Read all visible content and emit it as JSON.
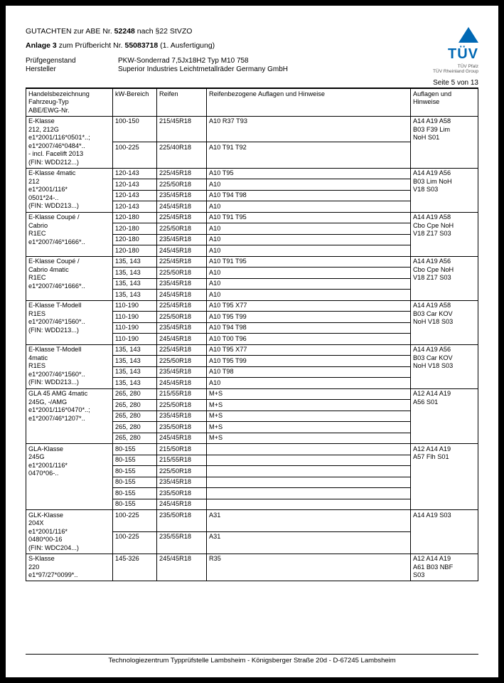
{
  "header": {
    "title_pre": "GUTACHTEN zur ABE Nr.",
    "abe_nr": "52248",
    "title_post": "nach §22 StVZO",
    "anlage_pre": "Anlage 3",
    "anlage_mid": "zum Prüfbericht Nr.",
    "pruef_nr": "55083718",
    "anlage_suffix": "(1. Ausfertigung)",
    "pruefgegenstand_label": "Prüfgegenstand",
    "pruefgegenstand_value": "PKW-Sonderrad 7,5Jx18H2 Typ M10 758",
    "hersteller_label": "Hersteller",
    "hersteller_value": "Superior Industries Leichtmetallräder Germany GmbH",
    "tuv_brand": "TÜV",
    "tuv_line1": "TÜV Pfalz",
    "tuv_line2": "TÜV Rheinland Group",
    "page_num": "Seite 5 von 13"
  },
  "columns": {
    "c1": "Handelsbezeichnung\nFahrzeug-Typ\nABE/EWG-Nr.",
    "c2": "kW-Bereich",
    "c3": "Reifen",
    "c4": "Reifenbezogene Auflagen und Hinweise",
    "c5": "Auflagen und Hinweise"
  },
  "groups": [
    {
      "model": "E-Klasse\n212, 212G\ne1*2001/116*0501*..;\ne1*2007/46*0484*..\n- incl. Facelift 2013\n(FIN: WDD212...)",
      "notes": "A14 A19 A58\nB03 F39 Lim\nNoH S01",
      "rows": [
        {
          "kw": "100-150",
          "reifen": "215/45R18",
          "h": "A10 R37 T93"
        },
        {
          "kw": "100-225",
          "reifen": "225/40R18",
          "h": "A10 T91 T92"
        }
      ]
    },
    {
      "model": "E-Klasse 4matic\n212\ne1*2001/116*\n0501*24-..\n(FIN: WDD213...)",
      "notes": "A14 A19 A56\nB03 Lim NoH\nV18 S03",
      "rows": [
        {
          "kw": "120-143",
          "reifen": "225/45R18",
          "h": "A10 T95"
        },
        {
          "kw": "120-143",
          "reifen": "225/50R18",
          "h": "A10"
        },
        {
          "kw": "120-143",
          "reifen": "235/45R18",
          "h": "A10 T94 T98"
        },
        {
          "kw": "120-143",
          "reifen": "245/45R18",
          "h": "A10"
        }
      ]
    },
    {
      "model": "E-Klasse Coupé /\nCabrio\nR1EC\ne1*2007/46*1666*..",
      "notes": "A14 A19 A58\nCbo Cpe NoH\nV18 Z17 S03",
      "rows": [
        {
          "kw": "120-180",
          "reifen": "225/45R18",
          "h": "A10 T91 T95"
        },
        {
          "kw": "120-180",
          "reifen": "225/50R18",
          "h": "A10"
        },
        {
          "kw": "120-180",
          "reifen": "235/45R18",
          "h": "A10"
        },
        {
          "kw": "120-180",
          "reifen": "245/45R18",
          "h": "A10"
        }
      ]
    },
    {
      "model": "E-Klasse Coupé /\nCabrio 4matic\nR1EC\ne1*2007/46*1666*..",
      "notes": "A14 A19 A56\nCbo Cpe NoH\nV18 Z17 S03",
      "rows": [
        {
          "kw": "135, 143",
          "reifen": "225/45R18",
          "h": "A10 T91 T95"
        },
        {
          "kw": "135, 143",
          "reifen": "225/50R18",
          "h": "A10"
        },
        {
          "kw": "135, 143",
          "reifen": "235/45R18",
          "h": "A10"
        },
        {
          "kw": "135, 143",
          "reifen": "245/45R18",
          "h": "A10"
        }
      ]
    },
    {
      "model": "E-Klasse T-Modell\nR1ES\ne1*2007/46*1560*..\n(FIN: WDD213...)",
      "notes": "A14 A19 A58\nB03 Car KOV\nNoH V18 S03",
      "rows": [
        {
          "kw": "110-190",
          "reifen": "225/45R18",
          "h": "A10 T95 X77"
        },
        {
          "kw": "110-190",
          "reifen": "225/50R18",
          "h": "A10 T95 T99"
        },
        {
          "kw": "110-190",
          "reifen": "235/45R18",
          "h": "A10 T94 T98"
        },
        {
          "kw": "110-190",
          "reifen": "245/45R18",
          "h": "A10 T00 T96"
        }
      ]
    },
    {
      "model": "E-Klasse T-Modell\n4matic\nR1ES\ne1*2007/46*1560*..\n(FIN: WDD213...)",
      "notes": "A14 A19 A56\nB03 Car KOV\nNoH V18 S03",
      "rows": [
        {
          "kw": "135, 143",
          "reifen": "225/45R18",
          "h": "A10 T95 X77"
        },
        {
          "kw": "135, 143",
          "reifen": "225/50R18",
          "h": "A10 T95 T99"
        },
        {
          "kw": "135, 143",
          "reifen": "235/45R18",
          "h": "A10 T98"
        },
        {
          "kw": "135, 143",
          "reifen": "245/45R18",
          "h": "A10"
        }
      ]
    },
    {
      "model": "GLA 45 AMG 4matic\n245G, -/AMG\ne1*2001/116*0470*..;\ne1*2007/46*1207*..",
      "notes": "A12 A14 A19\nA56 S01",
      "rows": [
        {
          "kw": "265, 280",
          "reifen": "215/55R18",
          "h": "M+S"
        },
        {
          "kw": "265, 280",
          "reifen": "225/50R18",
          "h": "M+S"
        },
        {
          "kw": "265, 280",
          "reifen": "235/45R18",
          "h": "M+S"
        },
        {
          "kw": "265, 280",
          "reifen": "235/50R18",
          "h": "M+S"
        },
        {
          "kw": "265, 280",
          "reifen": "245/45R18",
          "h": "M+S"
        }
      ]
    },
    {
      "model": "GLA-Klasse\n245G\ne1*2001/116*\n0470*06-..",
      "notes": "A12 A14 A19\nA57 Flh S01",
      "rows": [
        {
          "kw": "80-155",
          "reifen": "215/50R18",
          "h": ""
        },
        {
          "kw": "80-155",
          "reifen": "215/55R18",
          "h": ""
        },
        {
          "kw": "80-155",
          "reifen": "225/50R18",
          "h": ""
        },
        {
          "kw": "80-155",
          "reifen": "235/45R18",
          "h": ""
        },
        {
          "kw": "80-155",
          "reifen": "235/50R18",
          "h": ""
        },
        {
          "kw": "80-155",
          "reifen": "245/45R18",
          "h": ""
        }
      ]
    },
    {
      "model": "GLK-Klasse\n204X\ne1*2001/116*\n0480*00-16\n(FIN: WDC204...)",
      "notes": "A14 A19 S03",
      "rows": [
        {
          "kw": "100-225",
          "reifen": "235/50R18",
          "h": "A31"
        },
        {
          "kw": "100-225",
          "reifen": "235/55R18",
          "h": "A31"
        }
      ]
    },
    {
      "model": "S-Klasse\n220\ne1*97/27*0099*..",
      "notes": "A12 A14 A19\nA61 B03 NBF\nS03",
      "rows": [
        {
          "kw": "145-326",
          "reifen": "245/45R18",
          "h": "R35"
        }
      ]
    }
  ],
  "footer": "Technologiezentrum Typprüfstelle Lambsheim - Königsberger Straße 20d - D-67245 Lambsheim"
}
